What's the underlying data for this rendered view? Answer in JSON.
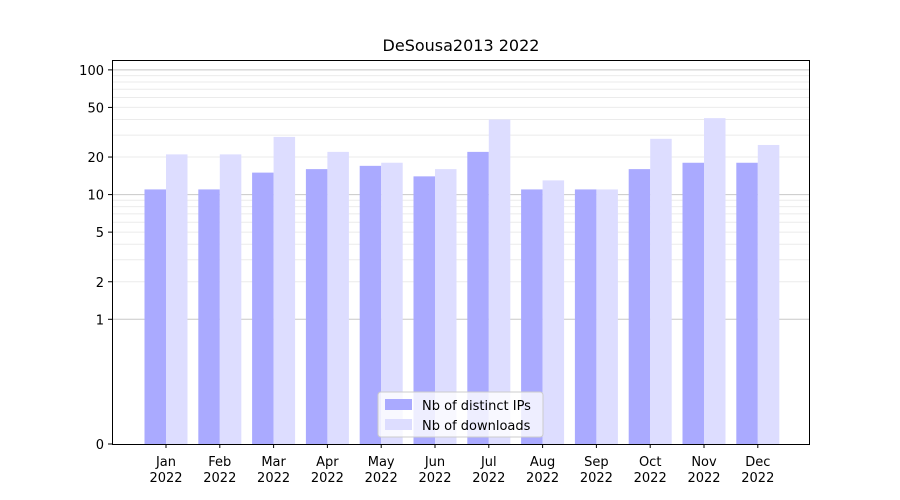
{
  "chart_data": {
    "type": "bar",
    "title": "DeSousa2013 2022",
    "xlabel": "",
    "ylabel": "",
    "scale": "symlog",
    "ylim": [
      0,
      120
    ],
    "yticks": [
      0,
      1,
      2,
      5,
      10,
      20,
      50,
      100
    ],
    "ytick_labels": [
      "0",
      "1",
      "2",
      "5",
      "10",
      "20",
      "50",
      "100"
    ],
    "grid": "horizontal",
    "legend_position": "bottom-center",
    "categories": [
      "Jan\n2022",
      "Feb\n2022",
      "Mar\n2022",
      "Apr\n2022",
      "May\n2022",
      "Jun\n2022",
      "Jul\n2022",
      "Aug\n2022",
      "Sep\n2022",
      "Oct\n2022",
      "Nov\n2022",
      "Dec\n2022"
    ],
    "category_lines": [
      [
        "Jan",
        "2022"
      ],
      [
        "Feb",
        "2022"
      ],
      [
        "Mar",
        "2022"
      ],
      [
        "Apr",
        "2022"
      ],
      [
        "May",
        "2022"
      ],
      [
        "Jun",
        "2022"
      ],
      [
        "Jul",
        "2022"
      ],
      [
        "Aug",
        "2022"
      ],
      [
        "Sep",
        "2022"
      ],
      [
        "Oct",
        "2022"
      ],
      [
        "Nov",
        "2022"
      ],
      [
        "Dec",
        "2022"
      ]
    ],
    "series": [
      {
        "name": "Nb of distinct IPs",
        "color": "#aaaaff",
        "values": [
          11,
          11,
          15,
          16,
          17,
          14,
          22,
          11,
          11,
          16,
          18,
          18
        ]
      },
      {
        "name": "Nb of downloads",
        "color": "#ddddff",
        "values": [
          21,
          21,
          29,
          22,
          18,
          16,
          40,
          13,
          11,
          28,
          41,
          25
        ]
      }
    ]
  }
}
